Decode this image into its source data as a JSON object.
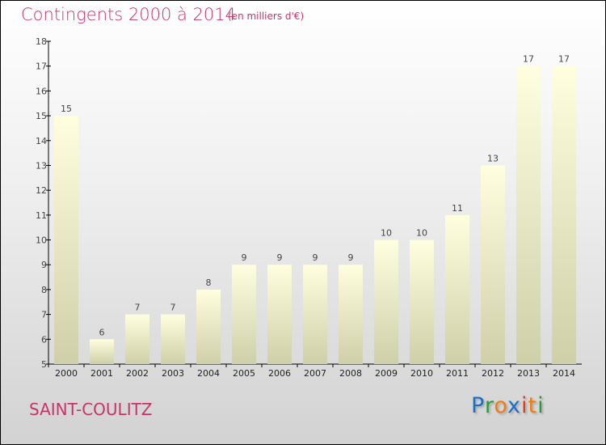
{
  "header": {
    "title": "Contingents 2000 à 2014",
    "subtitle": "(en milliers d'€)"
  },
  "footer": {
    "town": "SAINT-COULITZ",
    "logo": "Proxiti",
    "logo_colors": [
      "#1a6fc9",
      "#2a9a3a",
      "#f07c12",
      "#1a6fc9",
      "#e53a1a",
      "#f07c12",
      "#2a9a3a"
    ]
  },
  "chart_data": {
    "type": "bar",
    "title": "Contingents 2000 à 2014",
    "subtitle": "(en milliers d'€)",
    "xlabel": "",
    "ylabel": "",
    "categories": [
      "2000",
      "2001",
      "2002",
      "2003",
      "2004",
      "2005",
      "2006",
      "2007",
      "2008",
      "2009",
      "2010",
      "2011",
      "2012",
      "2013",
      "2014"
    ],
    "values": [
      15,
      6,
      7,
      7,
      8,
      9,
      9,
      9,
      9,
      10,
      10,
      11,
      13,
      17,
      17
    ],
    "ylim": [
      5,
      18
    ],
    "yticks": [
      5,
      6,
      7,
      8,
      9,
      10,
      11,
      12,
      13,
      14,
      15,
      16,
      17,
      18
    ],
    "grid": false,
    "bar_color_top": "#ffffe0",
    "bar_color_bottom": "#cfcfa8"
  }
}
